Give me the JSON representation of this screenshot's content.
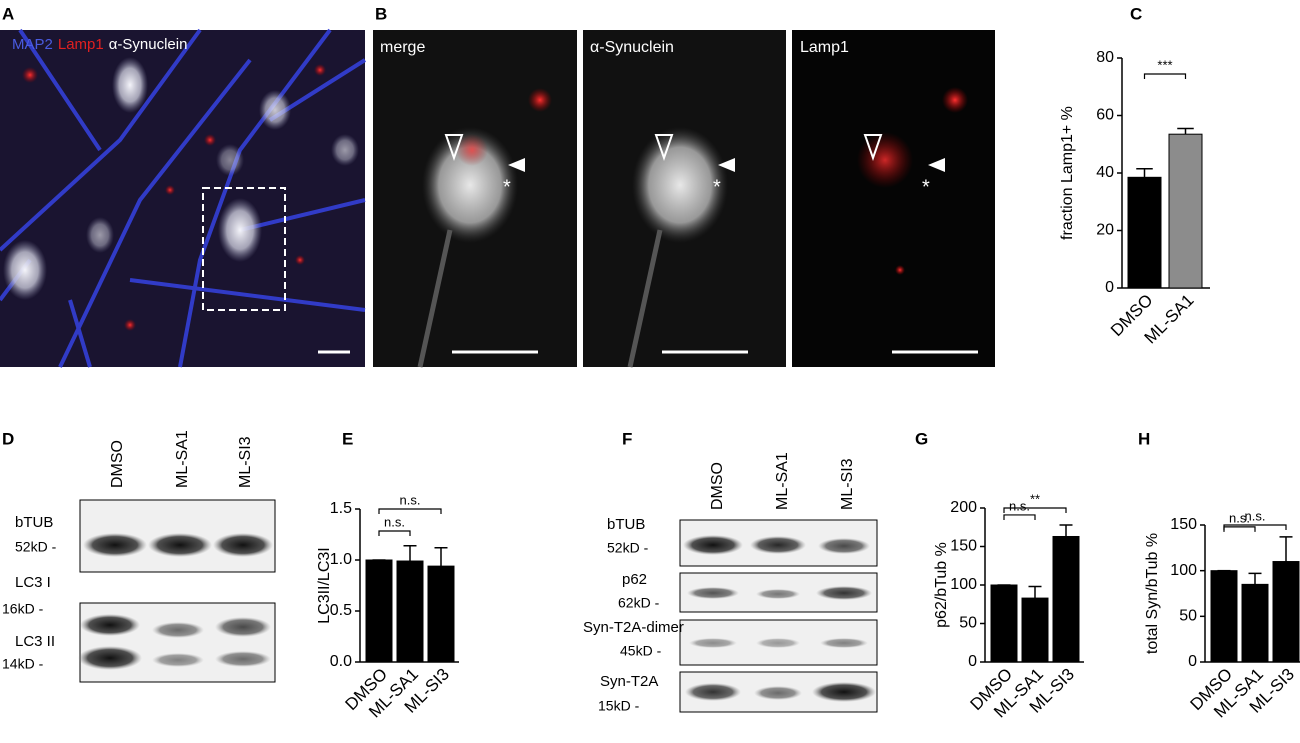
{
  "panel_labels": [
    "A",
    "B",
    "C",
    "D",
    "E",
    "F",
    "G",
    "H"
  ],
  "microscopy": {
    "legend": [
      {
        "text": "MAP2",
        "color": "#4a5be0"
      },
      {
        "text": "Lamp1",
        "color": "#e02020"
      },
      {
        "text": "α-Synuclein",
        "color": "#ffffff"
      }
    ],
    "views": [
      {
        "label": "merge",
        "mark": "*"
      },
      {
        "label": "α-Synuclein",
        "mark": "*"
      },
      {
        "label": "Lamp1",
        "mark": "*"
      }
    ]
  },
  "blot_d": {
    "lanes": [
      "DMSO",
      "ML-SA1",
      "ML-SI3"
    ],
    "rows": [
      {
        "name": "bTUB",
        "size": "52kD -"
      },
      {
        "name": "LC3 I",
        "size": "16kD -"
      },
      {
        "name": "LC3 II",
        "size": "14kD -"
      }
    ]
  },
  "blot_f": {
    "lanes": [
      "DMSO",
      "ML-SA1",
      "ML-SI3"
    ],
    "rows": [
      {
        "name": "bTUB",
        "size": "52kD -"
      },
      {
        "name": "p62",
        "size": "62kD -"
      },
      {
        "name": "Syn-T2A-dimer",
        "size": "45kD -"
      },
      {
        "name": "Syn-T2A",
        "size": "15kD -"
      }
    ]
  },
  "chart_data": [
    {
      "type": "bar",
      "y_label": "fraction Lamp1+ %",
      "categories": [
        "DMSO",
        "ML-SA1"
      ],
      "values": [
        38.5,
        53.5
      ],
      "errors": [
        3,
        2
      ],
      "colors": [
        "#000000",
        "#8c8c8c"
      ],
      "ylim": [
        0,
        80
      ],
      "yticks": [
        0,
        20,
        40,
        60,
        80
      ],
      "comparisons": [
        {
          "label": "***",
          "between": [
            0,
            1
          ]
        }
      ]
    },
    {
      "type": "bar",
      "y_label": "LC3II/LC3I",
      "categories": [
        "DMSO",
        "ML-SA1",
        "ML-SI3"
      ],
      "values": [
        1.0,
        0.99,
        0.94
      ],
      "errors": [
        0,
        0.15,
        0.18
      ],
      "colors": [
        "#000000",
        "#000000",
        "#000000"
      ],
      "ylim": [
        0,
        1.5
      ],
      "yticks": [
        {
          "value": 0,
          "label": "0.0"
        },
        0.5,
        {
          "value": 1,
          "label": "1.0"
        },
        1.5
      ],
      "comparisons": [
        {
          "label": "n.s.",
          "between": [
            0,
            1
          ]
        },
        {
          "label": "n.s.",
          "between": [
            0,
            2
          ]
        }
      ]
    },
    {
      "type": "bar",
      "y_label": "p62/bTub %",
      "categories": [
        "DMSO",
        "ML-SA1",
        "ML-SI3"
      ],
      "values": [
        100,
        83,
        163
      ],
      "errors": [
        0,
        15,
        15
      ],
      "colors": [
        "#000000",
        "#000000",
        "#000000"
      ],
      "ylim": [
        0,
        200
      ],
      "yticks": [
        0,
        50,
        100,
        150,
        200
      ],
      "comparisons": [
        {
          "label": "n.s.",
          "between": [
            0,
            1
          ]
        },
        {
          "label": "**",
          "between": [
            0,
            2
          ]
        }
      ]
    },
    {
      "type": "bar",
      "y_label": "total Syn/bTub %",
      "categories": [
        "DMSO",
        "ML-SA1",
        "ML-SI3"
      ],
      "values": [
        100,
        85,
        110
      ],
      "errors": [
        0,
        12,
        27
      ],
      "colors": [
        "#000000",
        "#000000",
        "#000000"
      ],
      "ylim": [
        0,
        150
      ],
      "yticks": [
        0,
        50,
        100,
        150
      ],
      "comparisons": [
        {
          "label": "n.s.",
          "between": [
            0,
            1
          ]
        },
        {
          "label": "n.s.",
          "between": [
            0,
            2
          ]
        }
      ]
    }
  ]
}
